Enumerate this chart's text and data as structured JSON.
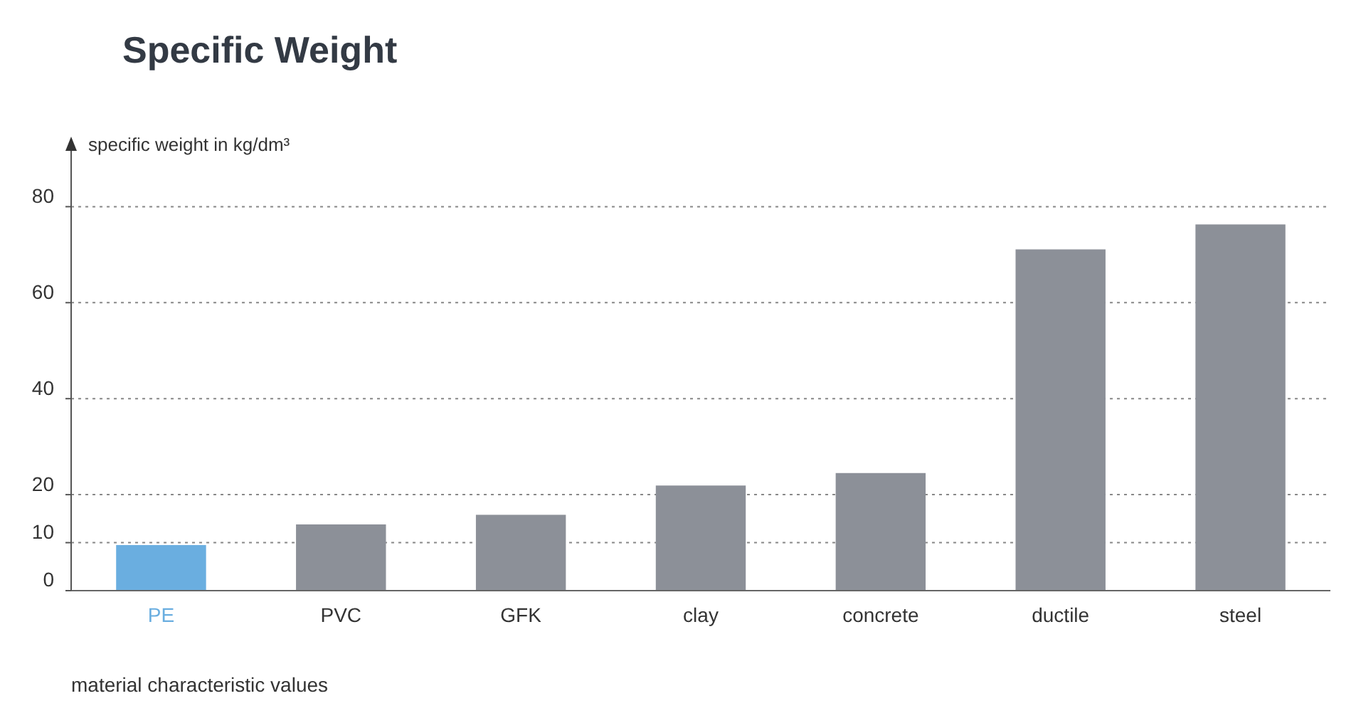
{
  "chart_data": {
    "type": "bar",
    "title": "Specific Weight",
    "ylabel": "specific weight in kg/dm³",
    "xlabel": "material characteristic values",
    "categories": [
      "PE",
      "PVC",
      "GFK",
      "clay",
      "concrete",
      "ductile",
      "steel"
    ],
    "values": [
      9.5,
      13.8,
      15.8,
      21.9,
      24.5,
      71.1,
      76.3
    ],
    "colors": [
      "#6aaee0",
      "#8c9098",
      "#8c9098",
      "#8c9098",
      "#8c9098",
      "#8c9098",
      "#8c9098"
    ],
    "ylim": [
      0,
      94
    ],
    "yticks": [
      0,
      10,
      20,
      40,
      60,
      80
    ],
    "grid": "y"
  }
}
